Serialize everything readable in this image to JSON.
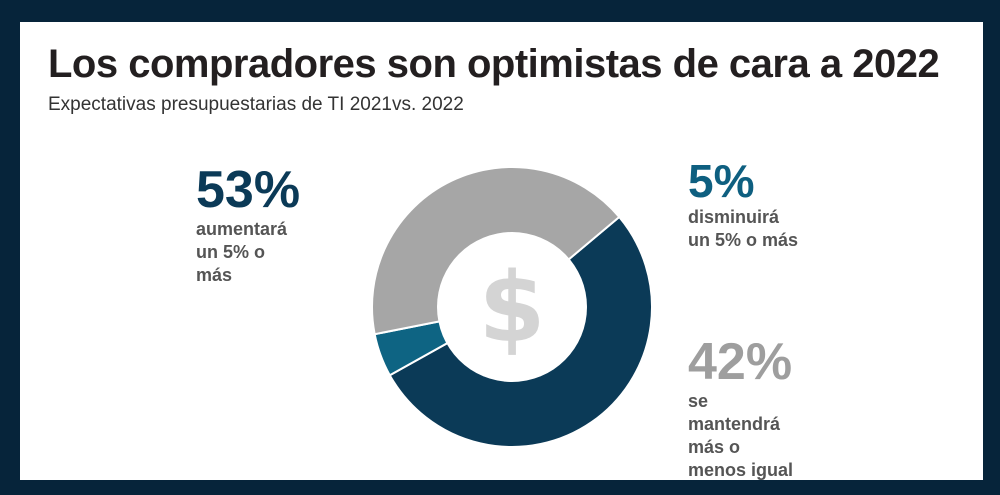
{
  "title": "Los compradores son optimistas de cara a 2022",
  "subtitle": "Expectativas presupuestarias de TI 2021vs. 2022",
  "center_symbol": "$",
  "colors": {
    "background": "#06243a",
    "increase": "#0b3a57",
    "decrease": "#0e6483",
    "same": "#a6a6a6",
    "center": "#ffffff",
    "symbol": "#d4d4d4"
  },
  "chart_data": {
    "type": "pie",
    "variant": "donut",
    "slices": [
      {
        "key": "increase",
        "value": 53,
        "percent_label": "53%",
        "label": "aumentará\nun 5% o\nmás"
      },
      {
        "key": "decrease",
        "value": 5,
        "percent_label": "5%",
        "label": "disminuirá\nun 5% o más"
      },
      {
        "key": "same",
        "value": 42,
        "percent_label": "42%",
        "label": "se\nmantendrá\nmás o\nmenos igual"
      }
    ]
  }
}
